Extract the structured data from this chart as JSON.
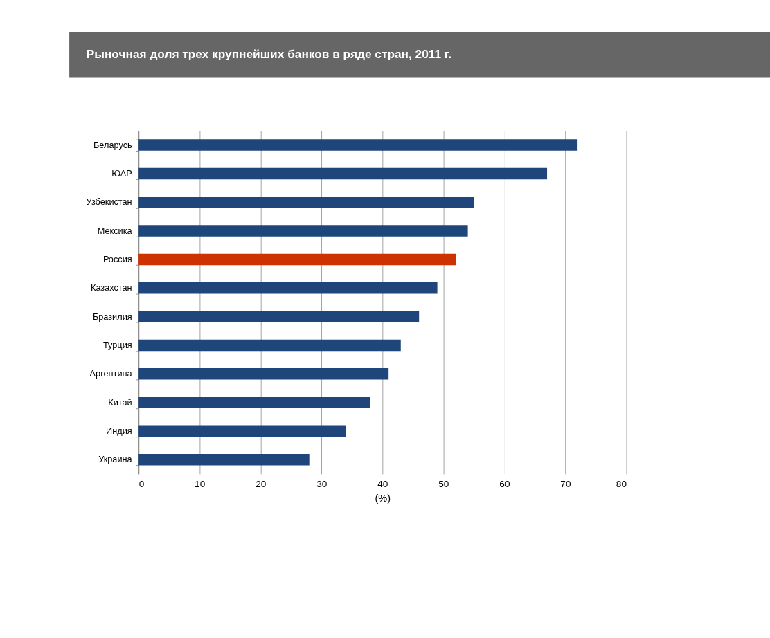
{
  "chart_data": {
    "type": "bar",
    "orientation": "horizontal",
    "title": "Рыночная доля трех крупнейших банков в ряде стран, 2011 г.",
    "xlabel": "(%)",
    "categories": [
      "Беларусь",
      "ЮАР",
      "Узбекистан",
      "Мексика",
      "Россия",
      "Казахстан",
      "Бразилия",
      "Турция",
      "Аргентина",
      "Китай",
      "Индия",
      "Украина"
    ],
    "values": [
      72,
      67,
      55,
      54,
      52,
      49,
      46,
      43,
      41,
      38,
      34,
      28
    ],
    "colors": [
      "#1f467a",
      "#1f467a",
      "#1f467a",
      "#1f467a",
      "#cc3300",
      "#1f467a",
      "#1f467a",
      "#1f467a",
      "#1f467a",
      "#1f467a",
      "#1f467a",
      "#1f467a"
    ],
    "xlim": [
      0,
      80
    ],
    "xticks": [
      0,
      10,
      20,
      30,
      40,
      50,
      60,
      70,
      80
    ],
    "grid": "x"
  }
}
